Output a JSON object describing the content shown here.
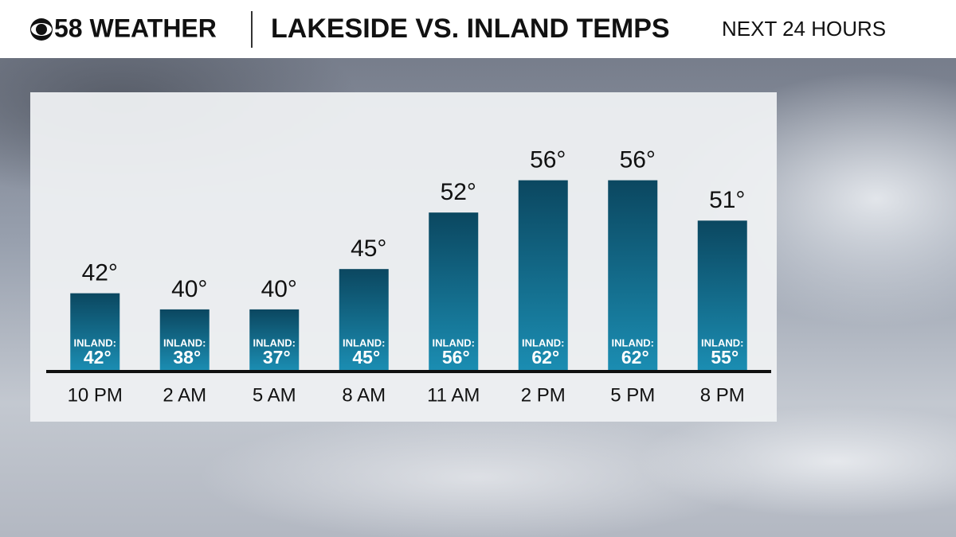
{
  "chart_data": {
    "type": "bar",
    "brand": "58 WEATHER",
    "title": "LAKESIDE VS. INLAND TEMPS",
    "subtitle": "NEXT 24 HOURS",
    "categories": [
      "10 PM",
      "2 AM",
      "5 AM",
      "8 AM",
      "11 AM",
      "2 PM",
      "5 PM",
      "8 PM"
    ],
    "values": [
      42,
      40,
      40,
      45,
      52,
      56,
      56,
      51
    ],
    "value_labels": [
      "42°",
      "40°",
      "40°",
      "45°",
      "52°",
      "56°",
      "56°",
      "51°"
    ],
    "inland": {
      "label": "INLAND:",
      "values": [
        42,
        38,
        37,
        45,
        56,
        62,
        62,
        55
      ],
      "value_labels": [
        "42°",
        "38°",
        "37°",
        "45°",
        "56°",
        "62°",
        "62°",
        "55°"
      ]
    },
    "colors": [
      "#0b4760",
      "#1b8db2"
    ],
    "ylim": [
      32.5,
      60
    ]
  }
}
